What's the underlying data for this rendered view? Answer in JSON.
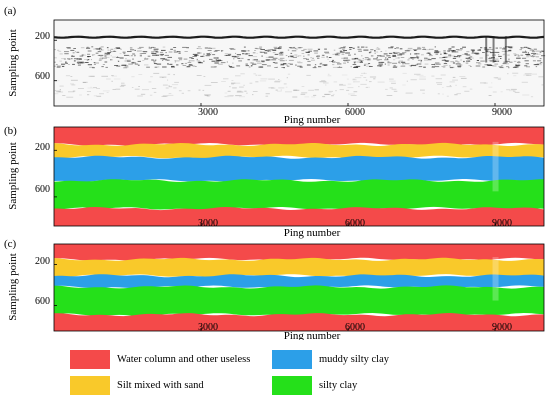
{
  "colors": {
    "water": "#f44a4a",
    "silt_sand": "#f9c92a",
    "muddy": "#2c9fe8",
    "silty_clay": "#25e01a",
    "sonar_bg": "#f7f7f7",
    "sonar_dark": "#1c1c1c"
  },
  "chart_data": [
    {
      "type": "heatmap",
      "panel": "(a)",
      "title": "",
      "xlabel": "Ping number",
      "ylabel": "Sampling point",
      "xticks": [
        3000,
        6000,
        9000
      ],
      "yticks": [
        200,
        600
      ],
      "xlim": [
        0,
        10000
      ],
      "ylim": [
        850,
        0
      ],
      "description_values": {
        "seabed_line_sampling_point": 170,
        "strong_layer_band": [
          260,
          420
        ]
      }
    },
    {
      "type": "heatmap",
      "panel": "(b)",
      "title": "",
      "xlabel": "Ping number",
      "ylabel": "Sampling point",
      "xticks": [
        3000,
        6000,
        9000
      ],
      "yticks": [
        200,
        600
      ],
      "xlim": [
        0,
        10000
      ],
      "ylim": [
        850,
        0
      ],
      "layers": [
        {
          "class": "Water column and other useless",
          "from": 0,
          "to": 150
        },
        {
          "class": "Silt mixed with sand",
          "from": 150,
          "to": 260
        },
        {
          "class": "muddy silty clay",
          "from": 260,
          "to": 460
        },
        {
          "class": "silty clay",
          "from": 460,
          "to": 700
        },
        {
          "class": "Water column and other useless",
          "from": 700,
          "to": 850
        }
      ]
    },
    {
      "type": "heatmap",
      "panel": "(c)",
      "title": "",
      "xlabel": "Ping number",
      "ylabel": "Sampling point",
      "xticks": [
        3000,
        6000,
        9000
      ],
      "yticks": [
        200,
        600
      ],
      "xlim": [
        0,
        10000
      ],
      "ylim": [
        850,
        0
      ],
      "layers": [
        {
          "class": "Water column and other useless",
          "from": 0,
          "to": 150
        },
        {
          "class": "Silt mixed with sand",
          "from": 150,
          "to": 310
        },
        {
          "class": "muddy silty clay",
          "from": 310,
          "to": 420
        },
        {
          "class": "silty clay",
          "from": 420,
          "to": 690
        },
        {
          "class": "Water column and other useless",
          "from": 690,
          "to": 850
        }
      ]
    }
  ],
  "panels": [
    {
      "label": "(a)",
      "xlabel": "Ping number",
      "ylabel": "Sampling point",
      "xticks": [
        "3000",
        "6000",
        "9000"
      ],
      "yticks": [
        "200",
        "600"
      ]
    },
    {
      "label": "(b)",
      "xlabel": "Ping number",
      "ylabel": "Sampling point",
      "xticks": [
        "3000",
        "6000",
        "9000"
      ],
      "yticks": [
        "200",
        "600"
      ]
    },
    {
      "label": "(c)",
      "xlabel": "Ping number",
      "ylabel": "Sampling point",
      "xticks": [
        "3000",
        "6000",
        "9000"
      ],
      "yticks": [
        "200",
        "600"
      ]
    }
  ],
  "legend": {
    "items": [
      {
        "label": "Water column and other useless",
        "color": "#f44a4a"
      },
      {
        "label": "muddy silty clay",
        "color": "#2c9fe8"
      },
      {
        "label": "Silt mixed with sand",
        "color": "#f9c92a"
      },
      {
        "label": "silty clay",
        "color": "#25e01a"
      }
    ]
  }
}
